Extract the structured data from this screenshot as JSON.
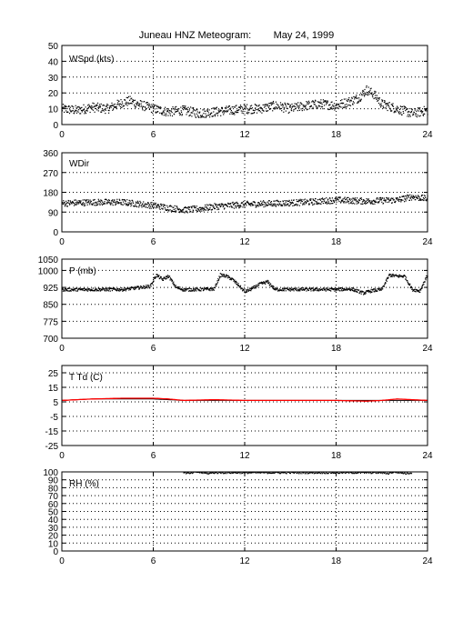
{
  "title": "Juneau HNZ Meteogram:        May 24, 1999",
  "colors": {
    "axes": "#000000",
    "grid": "#000000",
    "dots": "#000000",
    "temp_line": "#000000",
    "dewpoint_line": "#ff0000"
  },
  "chart_data": [
    {
      "type": "scatter",
      "label": "WSpd (kts)",
      "xlim": [
        0,
        24
      ],
      "ylim": [
        0,
        50
      ],
      "xticks": [
        0,
        6,
        12,
        18,
        24
      ],
      "yticks": [
        0,
        10,
        20,
        30,
        40,
        50
      ],
      "grid": true,
      "series": [
        {
          "x": [
            0,
            1,
            2,
            3,
            4,
            4.5,
            5,
            6,
            7,
            8,
            9,
            10,
            11,
            12,
            13,
            14,
            15,
            16,
            17,
            18,
            19,
            19.5,
            20,
            20.5,
            21,
            22,
            23,
            23.5,
            24
          ],
          "y": [
            10,
            9,
            11,
            10,
            14,
            15,
            13,
            10,
            8,
            9,
            7,
            8,
            9,
            10,
            10,
            12,
            10,
            12,
            13,
            12,
            15,
            17,
            22,
            19,
            13,
            10,
            7,
            8,
            9
          ]
        }
      ]
    },
    {
      "type": "scatter",
      "label": "WDir",
      "xlim": [
        0,
        24
      ],
      "ylim": [
        0,
        360
      ],
      "xticks": [
        0,
        6,
        12,
        18,
        24
      ],
      "yticks": [
        0,
        90,
        180,
        270,
        360
      ],
      "grid": true,
      "series": [
        {
          "x": [
            0,
            2,
            4,
            6,
            7,
            8,
            9,
            10,
            12,
            14,
            16,
            18,
            20,
            22,
            23,
            24
          ],
          "y": [
            130,
            135,
            135,
            120,
            110,
            100,
            105,
            115,
            125,
            130,
            135,
            145,
            140,
            145,
            160,
            150
          ]
        }
      ]
    },
    {
      "type": "scatter",
      "label": "P (mb)",
      "xlim": [
        0,
        24
      ],
      "ylim": [
        700,
        1050
      ],
      "xticks": [
        0,
        6,
        12,
        18,
        24
      ],
      "yticks": [
        700,
        775,
        850,
        925,
        1000,
        1050
      ],
      "grid": true,
      "series": [
        {
          "x": [
            0,
            2,
            4,
            5.8,
            6.2,
            6.6,
            7,
            7.5,
            8,
            9,
            10,
            10.4,
            10.8,
            11.2,
            11.6,
            12,
            12.5,
            13,
            13.5,
            14,
            15,
            16,
            17,
            18,
            19,
            19.8,
            20.3,
            21,
            21.5,
            22,
            22.5,
            23,
            23.5,
            24
          ],
          "y": [
            915,
            916,
            916,
            930,
            980,
            960,
            975,
            925,
            915,
            916,
            918,
            980,
            975,
            960,
            935,
            905,
            920,
            940,
            950,
            916,
            916,
            916,
            916,
            916,
            918,
            900,
            910,
            916,
            980,
            975,
            975,
            916,
            910,
            980
          ]
        }
      ]
    },
    {
      "type": "line",
      "label": "T Td (C)",
      "xlim": [
        0,
        24
      ],
      "ylim": [
        -25,
        30
      ],
      "xticks": [
        0,
        6,
        12,
        18,
        24
      ],
      "yticks": [
        -25,
        -15,
        -5,
        5,
        15,
        25
      ],
      "grid": true,
      "series": [
        {
          "x": [
            0,
            2,
            4,
            6,
            8,
            10,
            12,
            14,
            16,
            18,
            20,
            22,
            24
          ],
          "y": [
            6,
            7,
            7,
            7,
            6,
            6,
            6,
            6,
            6,
            6,
            6,
            6,
            6
          ]
        },
        {
          "x": [
            0,
            2,
            4,
            6,
            7,
            8,
            10,
            12,
            14,
            16,
            18,
            20,
            21,
            22,
            24
          ],
          "y": [
            6,
            7,
            7.5,
            7.5,
            7,
            6,
            6.5,
            6,
            6,
            6,
            6,
            5.5,
            6,
            7,
            6
          ]
        }
      ]
    },
    {
      "type": "scatter",
      "label": "RH (%)",
      "xlim": [
        0,
        24
      ],
      "ylim": [
        0,
        100
      ],
      "xticks": [
        0,
        6,
        12,
        18,
        24
      ],
      "yticks": [
        0,
        10,
        20,
        30,
        40,
        50,
        60,
        70,
        80,
        90,
        100
      ],
      "grid": true,
      "series": [
        {
          "x": [
            8,
            8.4,
            8.8,
            9.2,
            9.6,
            10,
            21,
            21.4,
            21.8,
            22.2,
            22.6,
            23
          ],
          "y": [
            99,
            98,
            100,
            99,
            98,
            99,
            99,
            98,
            100,
            99,
            98,
            99
          ]
        }
      ]
    }
  ]
}
